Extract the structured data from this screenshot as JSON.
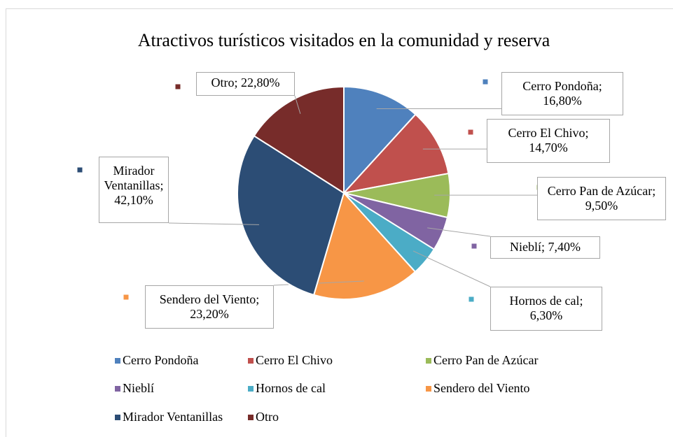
{
  "chart_data": {
    "type": "pie",
    "title": "Atractivos turísticos visitados en la comunidad y reserva",
    "categories": [
      "Cerro Pondoña",
      "Cerro El Chivo",
      "Cerro Pan de Azúcar",
      "Nieblí",
      "Hornos de cal",
      "Sendero del Viento",
      "Mirador Ventanillas",
      "Otro"
    ],
    "values": [
      16.8,
      14.7,
      9.5,
      7.4,
      6.3,
      23.2,
      42.1,
      22.8
    ],
    "value_labels": [
      "Cerro Pondoña; 16,80%",
      "Cerro El Chivo; 14,70%",
      "Cerro Pan de Azúcar; 9,50%",
      "Nieblí; 7,40%",
      "Hornos de cal; 6,30%",
      "Sendero del Viento; 23,20%",
      "Mirador Ventanillas; 42,10%",
      "Otro; 22,80%"
    ],
    "colors": [
      "#4f81bd",
      "#c0504d",
      "#9bbb59",
      "#8064a2",
      "#4bacc6",
      "#f79646",
      "#2c4d75",
      "#772c2a"
    ],
    "legend": "bottom"
  }
}
